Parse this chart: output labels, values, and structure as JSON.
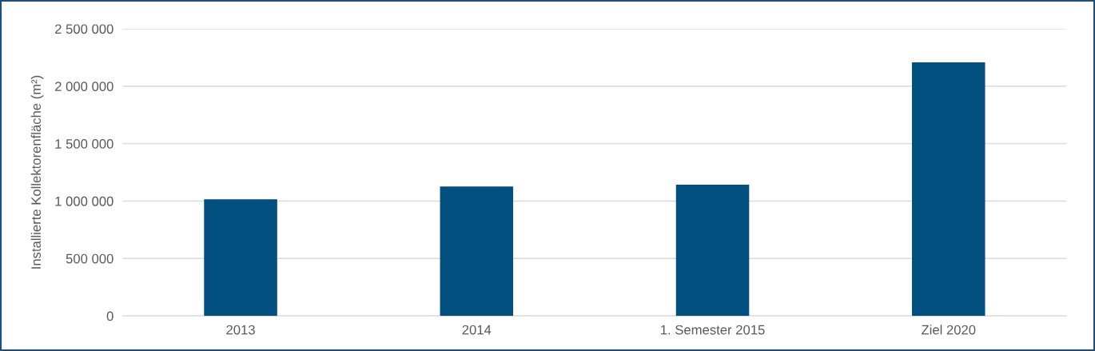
{
  "chart_data": {
    "type": "bar",
    "ylabel": "Installierte Kollektorenfläche (m²)",
    "categories": [
      "2013",
      "2014",
      "1. Semester 2015",
      "Ziel 2020"
    ],
    "values": [
      1015000,
      1127000,
      1143000,
      2208000
    ],
    "color": "#02507f",
    "ylim": [
      0,
      2500000
    ],
    "yticks": [
      {
        "value": 0,
        "label": "0"
      },
      {
        "value": 500000,
        "label": "500 000"
      },
      {
        "value": 1000000,
        "label": "1 000 000"
      },
      {
        "value": 1500000,
        "label": "1 500 000"
      },
      {
        "value": 2000000,
        "label": "2 000 000"
      },
      {
        "value": 2500000,
        "label": "2 500 000"
      }
    ],
    "grid": "y"
  }
}
